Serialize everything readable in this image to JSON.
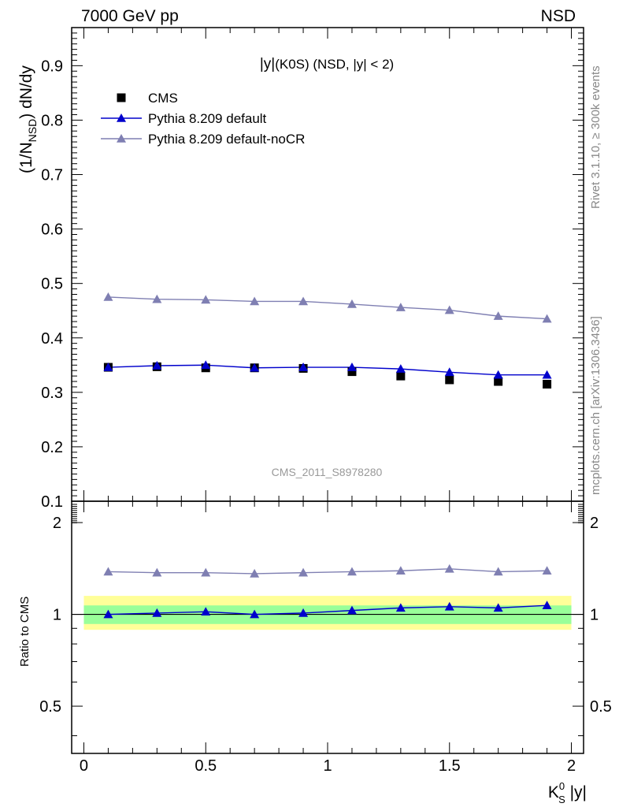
{
  "header": {
    "left": "7000 GeV pp",
    "right": "NSD"
  },
  "side_labels": {
    "rivet": "Rivet 3.1.10, ≥ 300k events",
    "mcplots": "mcplots.cern.ch [arXiv:1306.3436]"
  },
  "watermark": "CMS_2011_S8978280",
  "colors": {
    "cms": "#000000",
    "default": "#0000cc",
    "nocr": "#7f7fb2",
    "band_inner": "#99ff99",
    "band_outer": "#ffff99"
  },
  "chart_data": [
    {
      "type": "line",
      "title": "|y|(K0S) (NSD, |y| < 2)",
      "title_parts": {
        "main": "|y|",
        "sub": "(K0S) (NSD, |y| < 2)"
      },
      "ylabel": "(1/N_NSD) dN/dy",
      "ylabel_parts": {
        "pre": "(1/N",
        "sub": "NSD",
        "post": ") dN/dy"
      },
      "xlim": [
        -0.05,
        2.05
      ],
      "ylim": [
        0.1,
        0.97
      ],
      "x_ticks": [
        0,
        0.5,
        1,
        1.5,
        2
      ],
      "y_ticks": [
        0.1,
        0.2,
        0.3,
        0.4,
        0.5,
        0.6,
        0.7,
        0.8,
        0.9
      ],
      "y_tick_labels": [
        "0.1",
        "0.2",
        "0.3",
        "0.4",
        "0.5",
        "0.6",
        "0.7",
        "0.8",
        "0.9"
      ],
      "x": [
        0.1,
        0.3,
        0.5,
        0.7,
        0.9,
        1.1,
        1.3,
        1.5,
        1.7,
        1.9
      ],
      "series": [
        {
          "name": "CMS",
          "style": "markers",
          "marker": "square",
          "values": [
            0.346,
            0.347,
            0.345,
            0.345,
            0.344,
            0.338,
            0.33,
            0.323,
            0.32,
            0.315
          ]
        },
        {
          "name": "Pythia 8.209 default",
          "style": "line",
          "marker": "triangle",
          "values": [
            0.346,
            0.349,
            0.35,
            0.345,
            0.346,
            0.346,
            0.343,
            0.337,
            0.332,
            0.332
          ]
        },
        {
          "name": "Pythia 8.209 default-noCR",
          "style": "line",
          "marker": "triangle",
          "values": [
            0.475,
            0.471,
            0.47,
            0.467,
            0.467,
            0.462,
            0.456,
            0.451,
            0.44,
            0.435
          ]
        }
      ],
      "legend": "top-left"
    },
    {
      "type": "line",
      "ylabel": "Ratio to CMS",
      "xlabel": "K_S^0 |y|",
      "xlabel_parts": {
        "pre": "K",
        "sup": "0",
        "sub": "S",
        "post": " |y|"
      },
      "xlim": [
        -0.05,
        2.05
      ],
      "ylim": [
        0.35,
        2.35
      ],
      "x_ticks": [
        0,
        0.5,
        1,
        1.5,
        2
      ],
      "x_tick_labels": [
        "0",
        "0.5",
        "1",
        "1.5",
        "2"
      ],
      "y_ticks": [
        0.5,
        1,
        2
      ],
      "y_tick_labels": [
        "0.5",
        "1",
        "2"
      ],
      "x": [
        0.1,
        0.3,
        0.5,
        0.7,
        0.9,
        1.1,
        1.3,
        1.5,
        1.7,
        1.9
      ],
      "bands": {
        "inner": [
          0.93,
          1.07
        ],
        "outer": [
          0.89,
          1.15
        ],
        "x_range": [
          0,
          2
        ]
      },
      "series": [
        {
          "name": "Pythia 8.209 default",
          "values": [
            1.0,
            1.01,
            1.02,
            1.0,
            1.01,
            1.03,
            1.05,
            1.06,
            1.05,
            1.07
          ]
        },
        {
          "name": "Pythia 8.209 default-noCR",
          "values": [
            1.38,
            1.37,
            1.37,
            1.36,
            1.37,
            1.38,
            1.39,
            1.41,
            1.38,
            1.39
          ]
        }
      ]
    }
  ]
}
